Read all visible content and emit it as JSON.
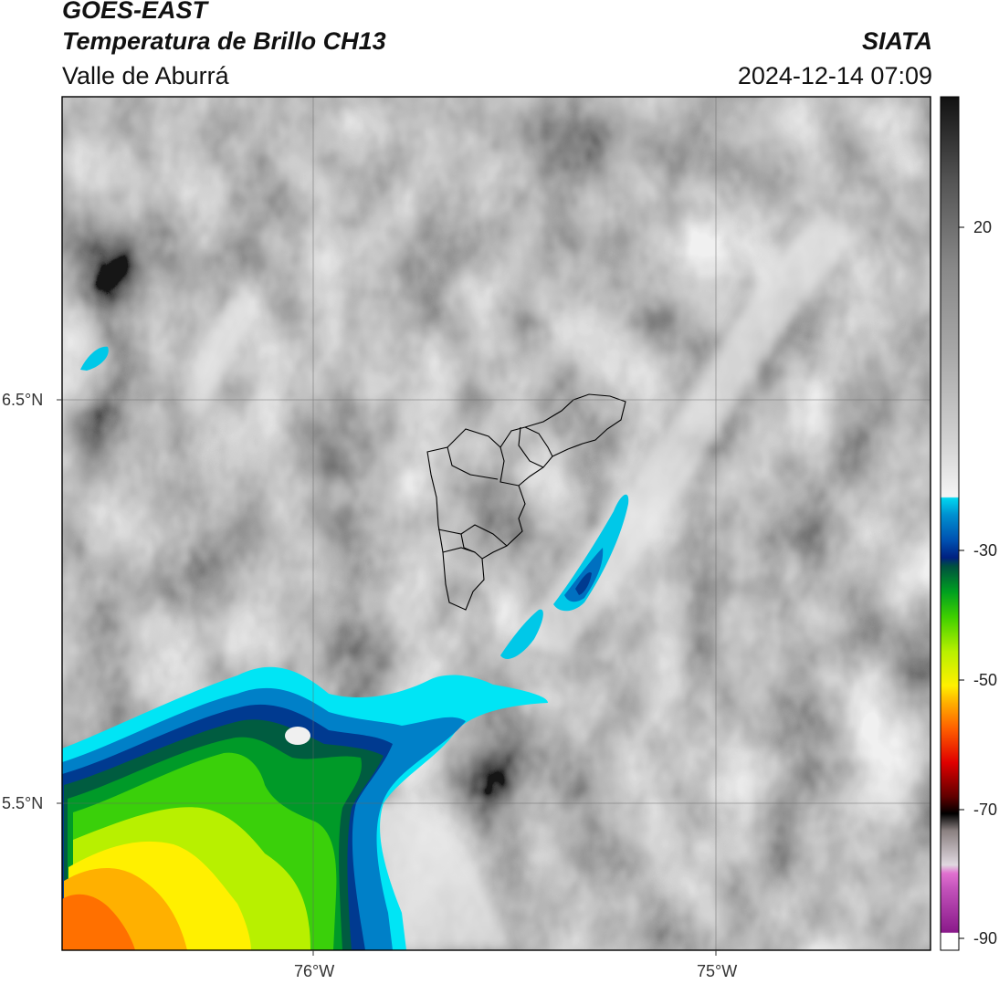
{
  "header": {
    "satellite": "GOES-EAST",
    "product": "Temperatura de Brillo CH13",
    "region": "Valle de Aburrá",
    "agency": "SIATA",
    "datetime": "2024-12-14 07:09"
  },
  "axes": {
    "lat_labels": [
      "6.5°N",
      "5.5°N"
    ],
    "lon_labels": [
      "76°W",
      "75°W"
    ]
  },
  "colorbar": {
    "unit_values": [
      20,
      -30,
      -50,
      -70,
      -90
    ],
    "labels": [
      "20",
      "-30",
      "-50",
      "-70",
      "-90"
    ],
    "range": [
      -92,
      33
    ]
  },
  "colors": {
    "cloud_tops": [
      "#00e5f5",
      "#0080c8",
      "#003a90",
      "#005c40",
      "#009a28",
      "#3ad00a",
      "#b8f000",
      "#fff000",
      "#ffb000",
      "#ff7000"
    ]
  }
}
